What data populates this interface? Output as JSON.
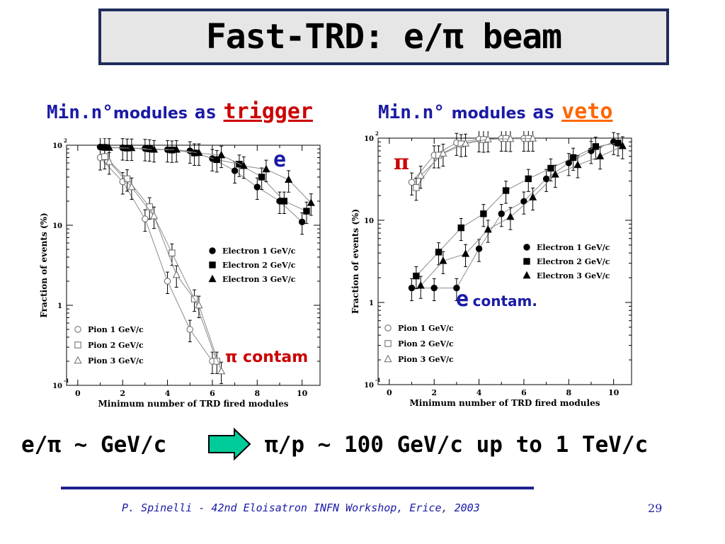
{
  "title": "Fast-TRD: e/π beam",
  "left_header": {
    "min": "Min.n°",
    "modules": "modules",
    "as": "as",
    "keyword": "trigger"
  },
  "right_header": {
    "min": "Min.n°",
    "modules": "modules",
    "as": "as",
    "keyword": "veto"
  },
  "left_annotations": {
    "e": "e",
    "pi_contam": "π contam"
  },
  "right_annotations": {
    "pi": "π",
    "e": "e",
    "contam": "contam."
  },
  "bottom": {
    "left": "e/π ~ GeV/c",
    "right": "π/p ~ 100 GeV/c up to 1 TeV/c"
  },
  "footer": "P. Spinelli - 42nd Eloisatron INFN Workshop, Erice, 2003",
  "page_number": "29",
  "colors": {
    "title_border": "#1f2d5c",
    "header_text": "#1a1aa6",
    "keyword_red": "#cc0000",
    "keyword_orange": "#ff6600",
    "arrow_fill": "#00cc99"
  },
  "chart_data": [
    {
      "type": "scatter",
      "xlabel": "Minimum number of TRD fired modules",
      "ylabel": "Fraction of events (%)",
      "xlim": [
        -0.5,
        10.8
      ],
      "ylim": [
        0.1,
        100
      ],
      "yscale": "log",
      "x_ticks": [
        "0",
        "2",
        "4",
        "6",
        "8",
        "10"
      ],
      "y_ticks": [
        {
          "base": "10",
          "exp": "-1"
        },
        {
          "base": "1",
          "exp": ""
        },
        {
          "base": "10",
          "exp": ""
        },
        {
          "base": "10",
          "exp": "2"
        }
      ],
      "legend_electrons": [
        "Electron 1 GeV/c",
        "Electron 2 GeV/c",
        "Electron 3 GeV/c"
      ],
      "legend_pions": [
        "Pion 1 GeV/c",
        "Pion 2 GeV/c",
        "Pion 3 GeV/c"
      ],
      "series": [
        {
          "name": "Electron 1 GeV/c",
          "marker": "circle-filled",
          "x": [
            1,
            2,
            3,
            4,
            5,
            6,
            7,
            8,
            9,
            10
          ],
          "y": [
            95,
            93,
            91,
            88,
            85,
            68,
            48,
            30,
            20,
            11
          ]
        },
        {
          "name": "Electron 2 GeV/c",
          "marker": "square-filled",
          "x": [
            1.2,
            2.2,
            3.2,
            4.2,
            5.2,
            6.2,
            7.2,
            8.2,
            9.2,
            10.2
          ],
          "y": [
            94,
            92,
            90,
            87,
            80,
            66,
            58,
            40,
            20,
            15
          ]
        },
        {
          "name": "Electron 3 GeV/c",
          "marker": "triangle-filled",
          "x": [
            1.4,
            2.4,
            3.4,
            4.4,
            5.4,
            6.4,
            7.4,
            8.4,
            9.4,
            10.4
          ],
          "y": [
            93,
            92,
            88,
            88,
            80,
            75,
            55,
            50,
            37,
            19
          ]
        },
        {
          "name": "Pion 1 GeV/c",
          "marker": "circle-open",
          "x": [
            1,
            2,
            3,
            4,
            5,
            6
          ],
          "y": [
            70,
            35,
            12,
            2,
            0.5,
            0.2
          ]
        },
        {
          "name": "Pion 2 GeV/c",
          "marker": "square-open",
          "x": [
            1.2,
            2.2,
            3.2,
            4.2,
            5.2,
            6.2
          ],
          "y": [
            72,
            38,
            17,
            4.5,
            1.2,
            0.2
          ]
        },
        {
          "name": "Pion 3 GeV/c",
          "marker": "triangle-open",
          "x": [
            1.4,
            2.4,
            3.4,
            4.4,
            5.4,
            6.4
          ],
          "y": [
            62,
            30,
            13,
            2.4,
            1,
            0.15
          ]
        }
      ]
    },
    {
      "type": "scatter",
      "xlabel": "Minimum number of TRD fired modules",
      "ylabel": "Fraction of events (%)",
      "xlim": [
        -0.5,
        10.8
      ],
      "ylim": [
        0.1,
        100
      ],
      "yscale": "log",
      "x_ticks": [
        "0",
        "2",
        "4",
        "6",
        "8",
        "10"
      ],
      "y_ticks": [
        {
          "base": "10",
          "exp": "-1"
        },
        {
          "base": "1",
          "exp": ""
        },
        {
          "base": "10",
          "exp": ""
        },
        {
          "base": "10",
          "exp": "2"
        }
      ],
      "legend_electrons": [
        "Electron 1 GeV/c",
        "Electron 2 GeV/c",
        "Electron 3 GeV/c"
      ],
      "legend_pions": [
        "Pion 1 GeV/c",
        "Pion 2 GeV/c",
        "Pion 3 GeV/c"
      ],
      "series": [
        {
          "name": "Electron 1 GeV/c",
          "marker": "circle-filled",
          "x": [
            1,
            2,
            3,
            4,
            5,
            6,
            7,
            8,
            9,
            10
          ],
          "y": [
            1.5,
            1.5,
            1.5,
            4.5,
            12,
            17,
            32,
            50,
            70,
            90
          ]
        },
        {
          "name": "Electron 2 GeV/c",
          "marker": "square-filled",
          "x": [
            1.2,
            2.2,
            3.2,
            4.2,
            5.2,
            6.2,
            7.2,
            8.2,
            9.2,
            10.2
          ],
          "y": [
            2.1,
            4.1,
            8.1,
            12,
            23,
            32,
            43,
            58,
            79,
            87
          ]
        },
        {
          "name": "Electron 3 GeV/c",
          "marker": "triangle-filled",
          "x": [
            1.4,
            2.4,
            3.4,
            4.4,
            5.4,
            6.4,
            7.4,
            8.4,
            9.4,
            10.4
          ],
          "y": [
            1.6,
            3.2,
            3.9,
            7.7,
            11,
            19,
            36,
            47,
            60,
            80
          ]
        },
        {
          "name": "Pion 1 GeV/c",
          "marker": "circle-open",
          "x": [
            1,
            2,
            3,
            4,
            5,
            6
          ],
          "y": [
            29,
            62,
            88,
            97,
            99,
            99
          ]
        },
        {
          "name": "Pion 2 GeV/c",
          "marker": "square-open",
          "x": [
            1.2,
            2.2,
            3.2,
            4.2,
            5.2,
            6.2
          ],
          "y": [
            25,
            62,
            85,
            96,
            99,
            99
          ]
        },
        {
          "name": "Pion 3 GeV/c",
          "marker": "triangle-open",
          "x": [
            1.4,
            2.4,
            3.4,
            4.4,
            5.4,
            6.4
          ],
          "y": [
            35,
            65,
            86,
            97,
            98,
            99
          ]
        }
      ]
    }
  ]
}
